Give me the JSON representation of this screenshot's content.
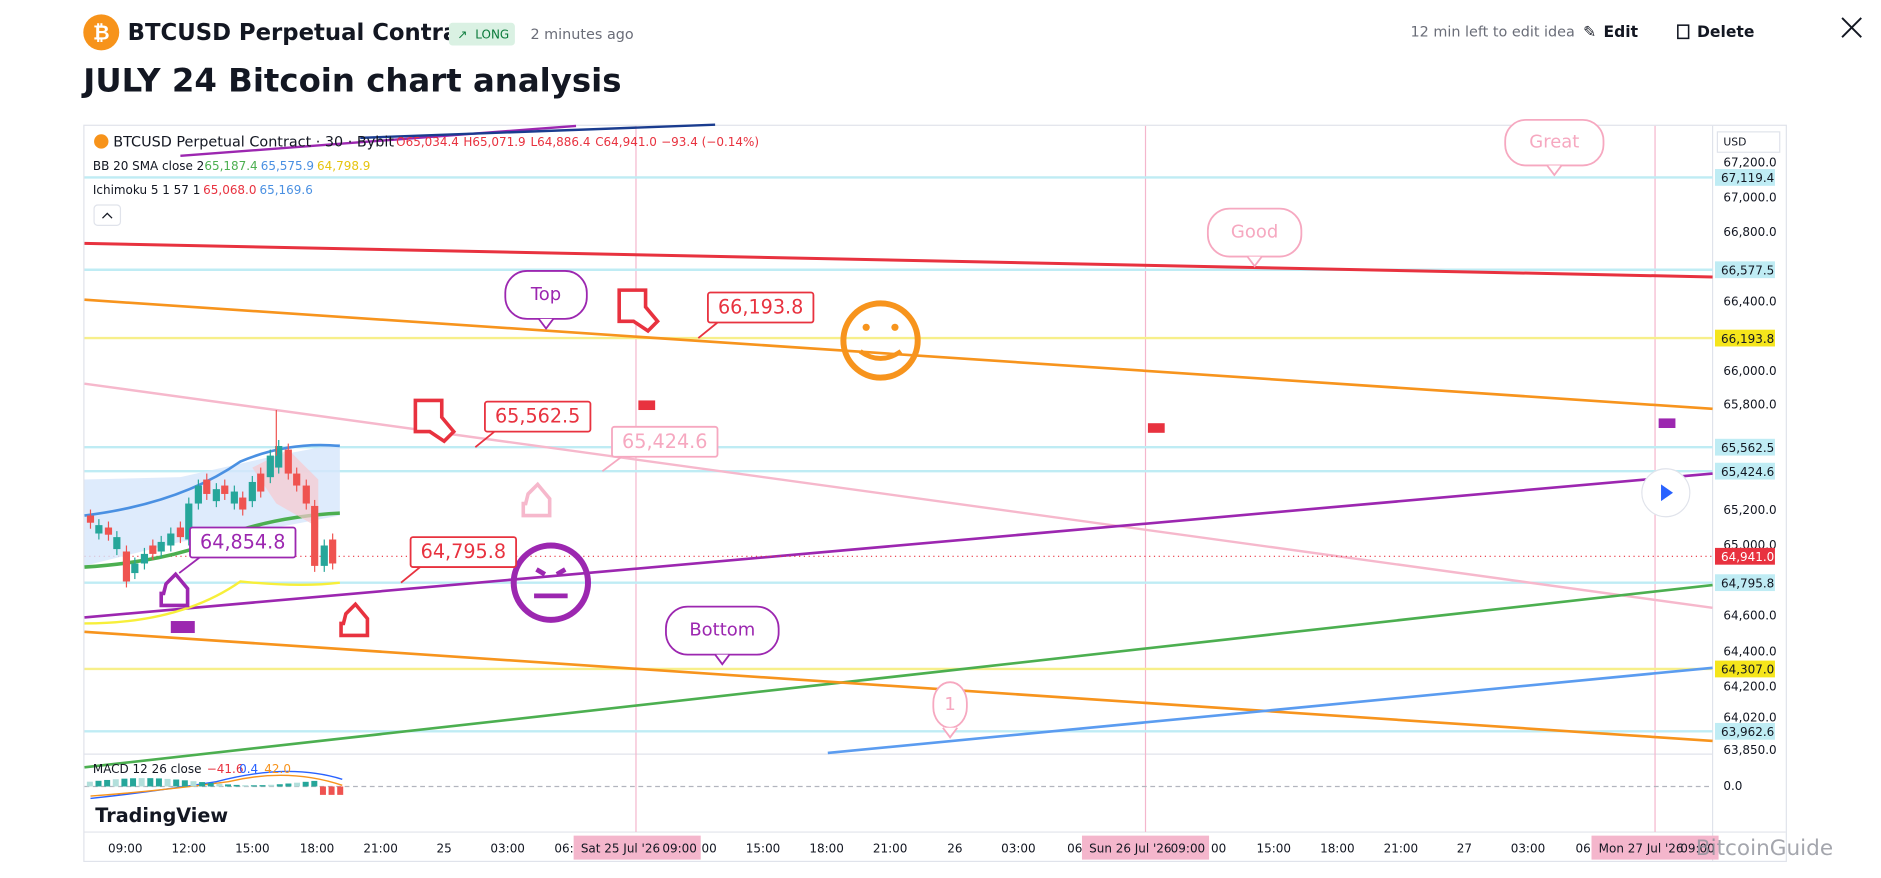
{
  "header": {
    "symbol": "BTCUSD Perpetual Contract",
    "badge": "LONG",
    "time": "2 minutes ago",
    "edit_notice": "12 min left to edit idea",
    "edit": "Edit",
    "delete": "Delete",
    "title": "JULY 24 Bitcoin chart analysis"
  },
  "chart": {
    "legend": {
      "symbol": "BTCUSD Perpetual Contract · 30 · Bybit",
      "open": "O65,034.4",
      "high": "H65,071.9",
      "low": "L64,886.4",
      "close": "C64,941.0",
      "change": "−93.4 (−0.14%)"
    },
    "indicators": [
      {
        "name": "BB 20 SMA close 2",
        "values": [
          "65,187.4",
          "65,575.9",
          "64,798.9"
        ]
      },
      {
        "name": "Ichimoku 5 1 57 1",
        "values": [
          "65,068.0",
          "65,169.6"
        ]
      }
    ],
    "currency": "USD",
    "price_scale": [
      "67,200.0",
      "67,000.0",
      "66,800.0",
      "66,400.0",
      "66,000.0",
      "65,800.0",
      "65,200.0",
      "65,000.0",
      "64,600.0",
      "64,400.0",
      "64,200.0",
      "64,020.0",
      "63,850.0"
    ],
    "price_badges": [
      "67,119.4",
      "66,577.5",
      "66,193.8",
      "65,562.5",
      "65,424.6",
      "64,941.0",
      "64,795.8",
      "64,307.0",
      "63,962.6"
    ],
    "time_scale": [
      "09:00",
      "12:00",
      "15:00",
      "18:00",
      "21:00",
      "25",
      "03:00",
      "06:",
      "00",
      "15:00",
      "18:00",
      "21:00",
      "26",
      "03:00",
      "06",
      "00",
      "15:00",
      "18:00",
      "21:00",
      "27",
      "03:00",
      "06"
    ],
    "date_badges": [
      {
        "date": "Sat 25 Jul '26",
        "time": "09:00"
      },
      {
        "date": "Sun 26 Jul '26",
        "time": "09:00"
      },
      {
        "date": "Mon 27 Jul '26",
        "time": "09:00"
      }
    ],
    "annotations": [
      "Top",
      "Good",
      "Great",
      "Bottom",
      "1"
    ],
    "price_notes": [
      "66,193.8",
      "65,562.5",
      "65,424.6",
      "64,795.8",
      "64,854.8"
    ],
    "macd": {
      "name": "MACD 12 26 close",
      "values": [
        "−41.6",
        "0.4",
        "42.0"
      ],
      "scale": "0.0"
    },
    "brand": "TradingView"
  },
  "watermark": "BitcoinGuide"
}
